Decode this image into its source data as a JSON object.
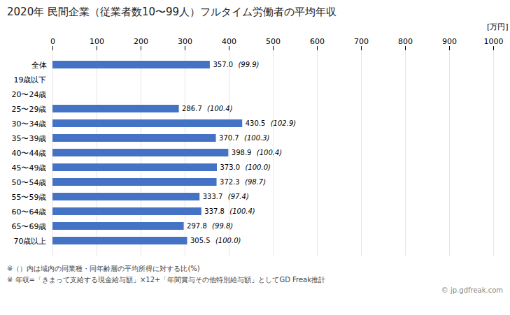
{
  "chart_data": {
    "type": "bar",
    "orientation": "horizontal",
    "title": "2020年 民間企業（従業者数10〜99人）フルタイム労働者の平均年収",
    "xlabel": "[万円]",
    "categories": [
      "全体",
      "19歳以下",
      "20〜24歳",
      "25〜29歳",
      "30〜34歳",
      "35〜39歳",
      "40〜44歳",
      "45〜49歳",
      "50〜54歳",
      "55〜59歳",
      "60〜64歳",
      "65〜69歳",
      "70歳以上"
    ],
    "values": [
      357.0,
      null,
      null,
      286.7,
      430.5,
      370.7,
      398.9,
      373.0,
      372.3,
      333.7,
      337.8,
      297.8,
      305.5
    ],
    "value_labels": [
      "357.0",
      null,
      null,
      "286.7",
      "430.5",
      "370.7",
      "398.9",
      "373.0",
      "372.3",
      "333.7",
      "337.8",
      "297.8",
      "305.5"
    ],
    "annotations": [
      "(99.9)",
      null,
      null,
      "(100.4)",
      "(102.9)",
      "(100.3)",
      "(100.4)",
      "(100.0)",
      "(98.7)",
      "(97.4)",
      "(100.4)",
      "(99.8)",
      "(100.0)"
    ],
    "color": "#4472c4",
    "xlim": [
      0,
      1000
    ],
    "xticks": [
      0,
      100,
      200,
      300,
      400,
      500,
      600,
      700,
      800,
      900,
      1000
    ],
    "grid": true,
    "data_labels": true,
    "footnotes": [
      "※（）内は域内の同業種・同年齢層の平均所得に対する比(%)",
      "※ 年収=「きまって支給する現金給与額」×12+「年間賞与その他特別給与額」としてGD Freak推計"
    ],
    "watermark": "© jp.gdfreak.com"
  }
}
